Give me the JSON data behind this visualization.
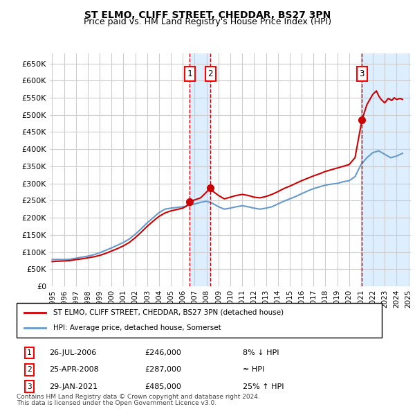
{
  "title": "ST ELMO, CLIFF STREET, CHEDDAR, BS27 3PN",
  "subtitle": "Price paid vs. HM Land Registry's House Price Index (HPI)",
  "legend_entry1": "ST ELMO, CLIFF STREET, CHEDDAR, BS27 3PN (detached house)",
  "legend_entry2": "HPI: Average price, detached house, Somerset",
  "footnote1": "Contains HM Land Registry data © Crown copyright and database right 2024.",
  "footnote2": "This data is licensed under the Open Government Licence v3.0.",
  "transactions": [
    {
      "label": "1",
      "date": "26-JUL-2006",
      "price": 246000,
      "rel": "8% ↓ HPI",
      "x": 2006.57
    },
    {
      "label": "2",
      "date": "25-APR-2008",
      "price": 287000,
      "rel": "≈ HPI",
      "x": 2008.32
    },
    {
      "label": "3",
      "date": "29-JAN-2021",
      "price": 485000,
      "rel": "25% ↑ HPI",
      "x": 2021.08
    }
  ],
  "hpi_color": "#6699cc",
  "price_color": "#cc0000",
  "shade_color": "#ddeeff",
  "grid_color": "#cccccc",
  "bg_color": "#ffffff",
  "ylim": [
    0,
    680000
  ],
  "yticks": [
    0,
    50000,
    100000,
    150000,
    200000,
    250000,
    300000,
    350000,
    400000,
    450000,
    500000,
    550000,
    600000,
    650000
  ],
  "hpi_data": {
    "years": [
      1995,
      1995.5,
      1996,
      1996.5,
      1997,
      1997.5,
      1998,
      1998.5,
      1999,
      1999.5,
      2000,
      2000.5,
      2001,
      2001.5,
      2002,
      2002.5,
      2003,
      2003.5,
      2004,
      2004.5,
      2005,
      2005.5,
      2006,
      2006.5,
      2007,
      2007.5,
      2008,
      2008.5,
      2009,
      2009.5,
      2010,
      2010.5,
      2011,
      2011.5,
      2012,
      2012.5,
      2013,
      2013.5,
      2014,
      2014.5,
      2015,
      2015.5,
      2016,
      2016.5,
      2017,
      2017.5,
      2018,
      2018.5,
      2019,
      2019.5,
      2020,
      2020.5,
      2021,
      2021.5,
      2022,
      2022.5,
      2023,
      2023.5,
      2024,
      2024.5
    ],
    "values": [
      78000,
      78500,
      78000,
      79000,
      82000,
      85000,
      88000,
      92000,
      98000,
      105000,
      112000,
      120000,
      128000,
      138000,
      152000,
      168000,
      185000,
      200000,
      215000,
      225000,
      228000,
      230000,
      232000,
      235000,
      240000,
      245000,
      248000,
      242000,
      232000,
      225000,
      228000,
      232000,
      235000,
      232000,
      228000,
      225000,
      228000,
      232000,
      240000,
      248000,
      255000,
      262000,
      270000,
      278000,
      285000,
      290000,
      295000,
      298000,
      300000,
      305000,
      308000,
      320000,
      355000,
      375000,
      390000,
      395000,
      385000,
      375000,
      380000,
      388000
    ]
  },
  "price_data": {
    "years": [
      1995,
      1995.3,
      1995.7,
      1996,
      1996.5,
      1997,
      1997.5,
      1998,
      1998.5,
      1999,
      1999.5,
      2000,
      2000.5,
      2001,
      2001.5,
      2002,
      2002.5,
      2003,
      2003.5,
      2004,
      2004.5,
      2005,
      2005.5,
      2006,
      2006.3,
      2006.57,
      2006.8,
      2007,
      2007.5,
      2008,
      2008.32,
      2008.5,
      2009,
      2009.5,
      2010,
      2010.5,
      2011,
      2011.5,
      2012,
      2012.5,
      2013,
      2013.5,
      2014,
      2014.5,
      2015,
      2015.5,
      2016,
      2016.5,
      2017,
      2017.5,
      2018,
      2018.5,
      2019,
      2019.5,
      2020,
      2020.5,
      2021.08,
      2021.5,
      2022,
      2022.3,
      2022.5,
      2022.7,
      2023,
      2023.3,
      2023.6,
      2023.8,
      2024,
      2024.3,
      2024.5
    ],
    "values": [
      72000,
      73000,
      73500,
      74000,
      75000,
      78000,
      80000,
      83000,
      86000,
      90000,
      96000,
      103000,
      110000,
      118000,
      128000,
      142000,
      158000,
      175000,
      190000,
      204000,
      214000,
      220000,
      224000,
      228000,
      234000,
      246000,
      250000,
      252000,
      258000,
      275000,
      287000,
      278000,
      265000,
      255000,
      260000,
      265000,
      268000,
      265000,
      260000,
      258000,
      262000,
      268000,
      276000,
      285000,
      292000,
      300000,
      308000,
      315000,
      322000,
      328000,
      335000,
      340000,
      345000,
      350000,
      355000,
      375000,
      485000,
      530000,
      560000,
      570000,
      555000,
      545000,
      535000,
      548000,
      542000,
      550000,
      545000,
      548000,
      545000
    ]
  }
}
